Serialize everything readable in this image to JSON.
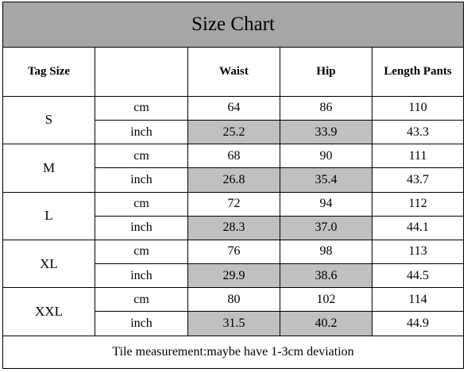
{
  "title": "Size Chart",
  "headers": {
    "tag_size": "Tag Size",
    "unit": "",
    "waist": "Waist",
    "hip": "Hip",
    "length": "Length Pants"
  },
  "rows": [
    {
      "size": "S",
      "cm": {
        "unit": "cm",
        "waist": "64",
        "hip": "86",
        "length": "110"
      },
      "inch": {
        "unit": "inch",
        "waist": "25.2",
        "hip": "33.9",
        "length": "43.3"
      }
    },
    {
      "size": "M",
      "cm": {
        "unit": "cm",
        "waist": "68",
        "hip": "90",
        "length": "111"
      },
      "inch": {
        "unit": "inch",
        "waist": "26.8",
        "hip": "35.4",
        "length": "43.7"
      }
    },
    {
      "size": "L",
      "cm": {
        "unit": "cm",
        "waist": "72",
        "hip": "94",
        "length": "112"
      },
      "inch": {
        "unit": "inch",
        "waist": "28.3",
        "hip": "37.0",
        "length": "44.1"
      }
    },
    {
      "size": "XL",
      "cm": {
        "unit": "cm",
        "waist": "76",
        "hip": "98",
        "length": "113"
      },
      "inch": {
        "unit": "inch",
        "waist": "29.9",
        "hip": "38.6",
        "length": "44.5"
      }
    },
    {
      "size": "XXL",
      "cm": {
        "unit": "cm",
        "waist": "80",
        "hip": "102",
        "length": "114"
      },
      "inch": {
        "unit": "inch",
        "waist": "31.5",
        "hip": "40.2",
        "length": "44.9"
      }
    }
  ],
  "note": "Tile measurement:maybe have 1-3cm deviation",
  "colors": {
    "title_bg": "#a6a6a6",
    "inch_row_bg": "#c0c0c0"
  }
}
